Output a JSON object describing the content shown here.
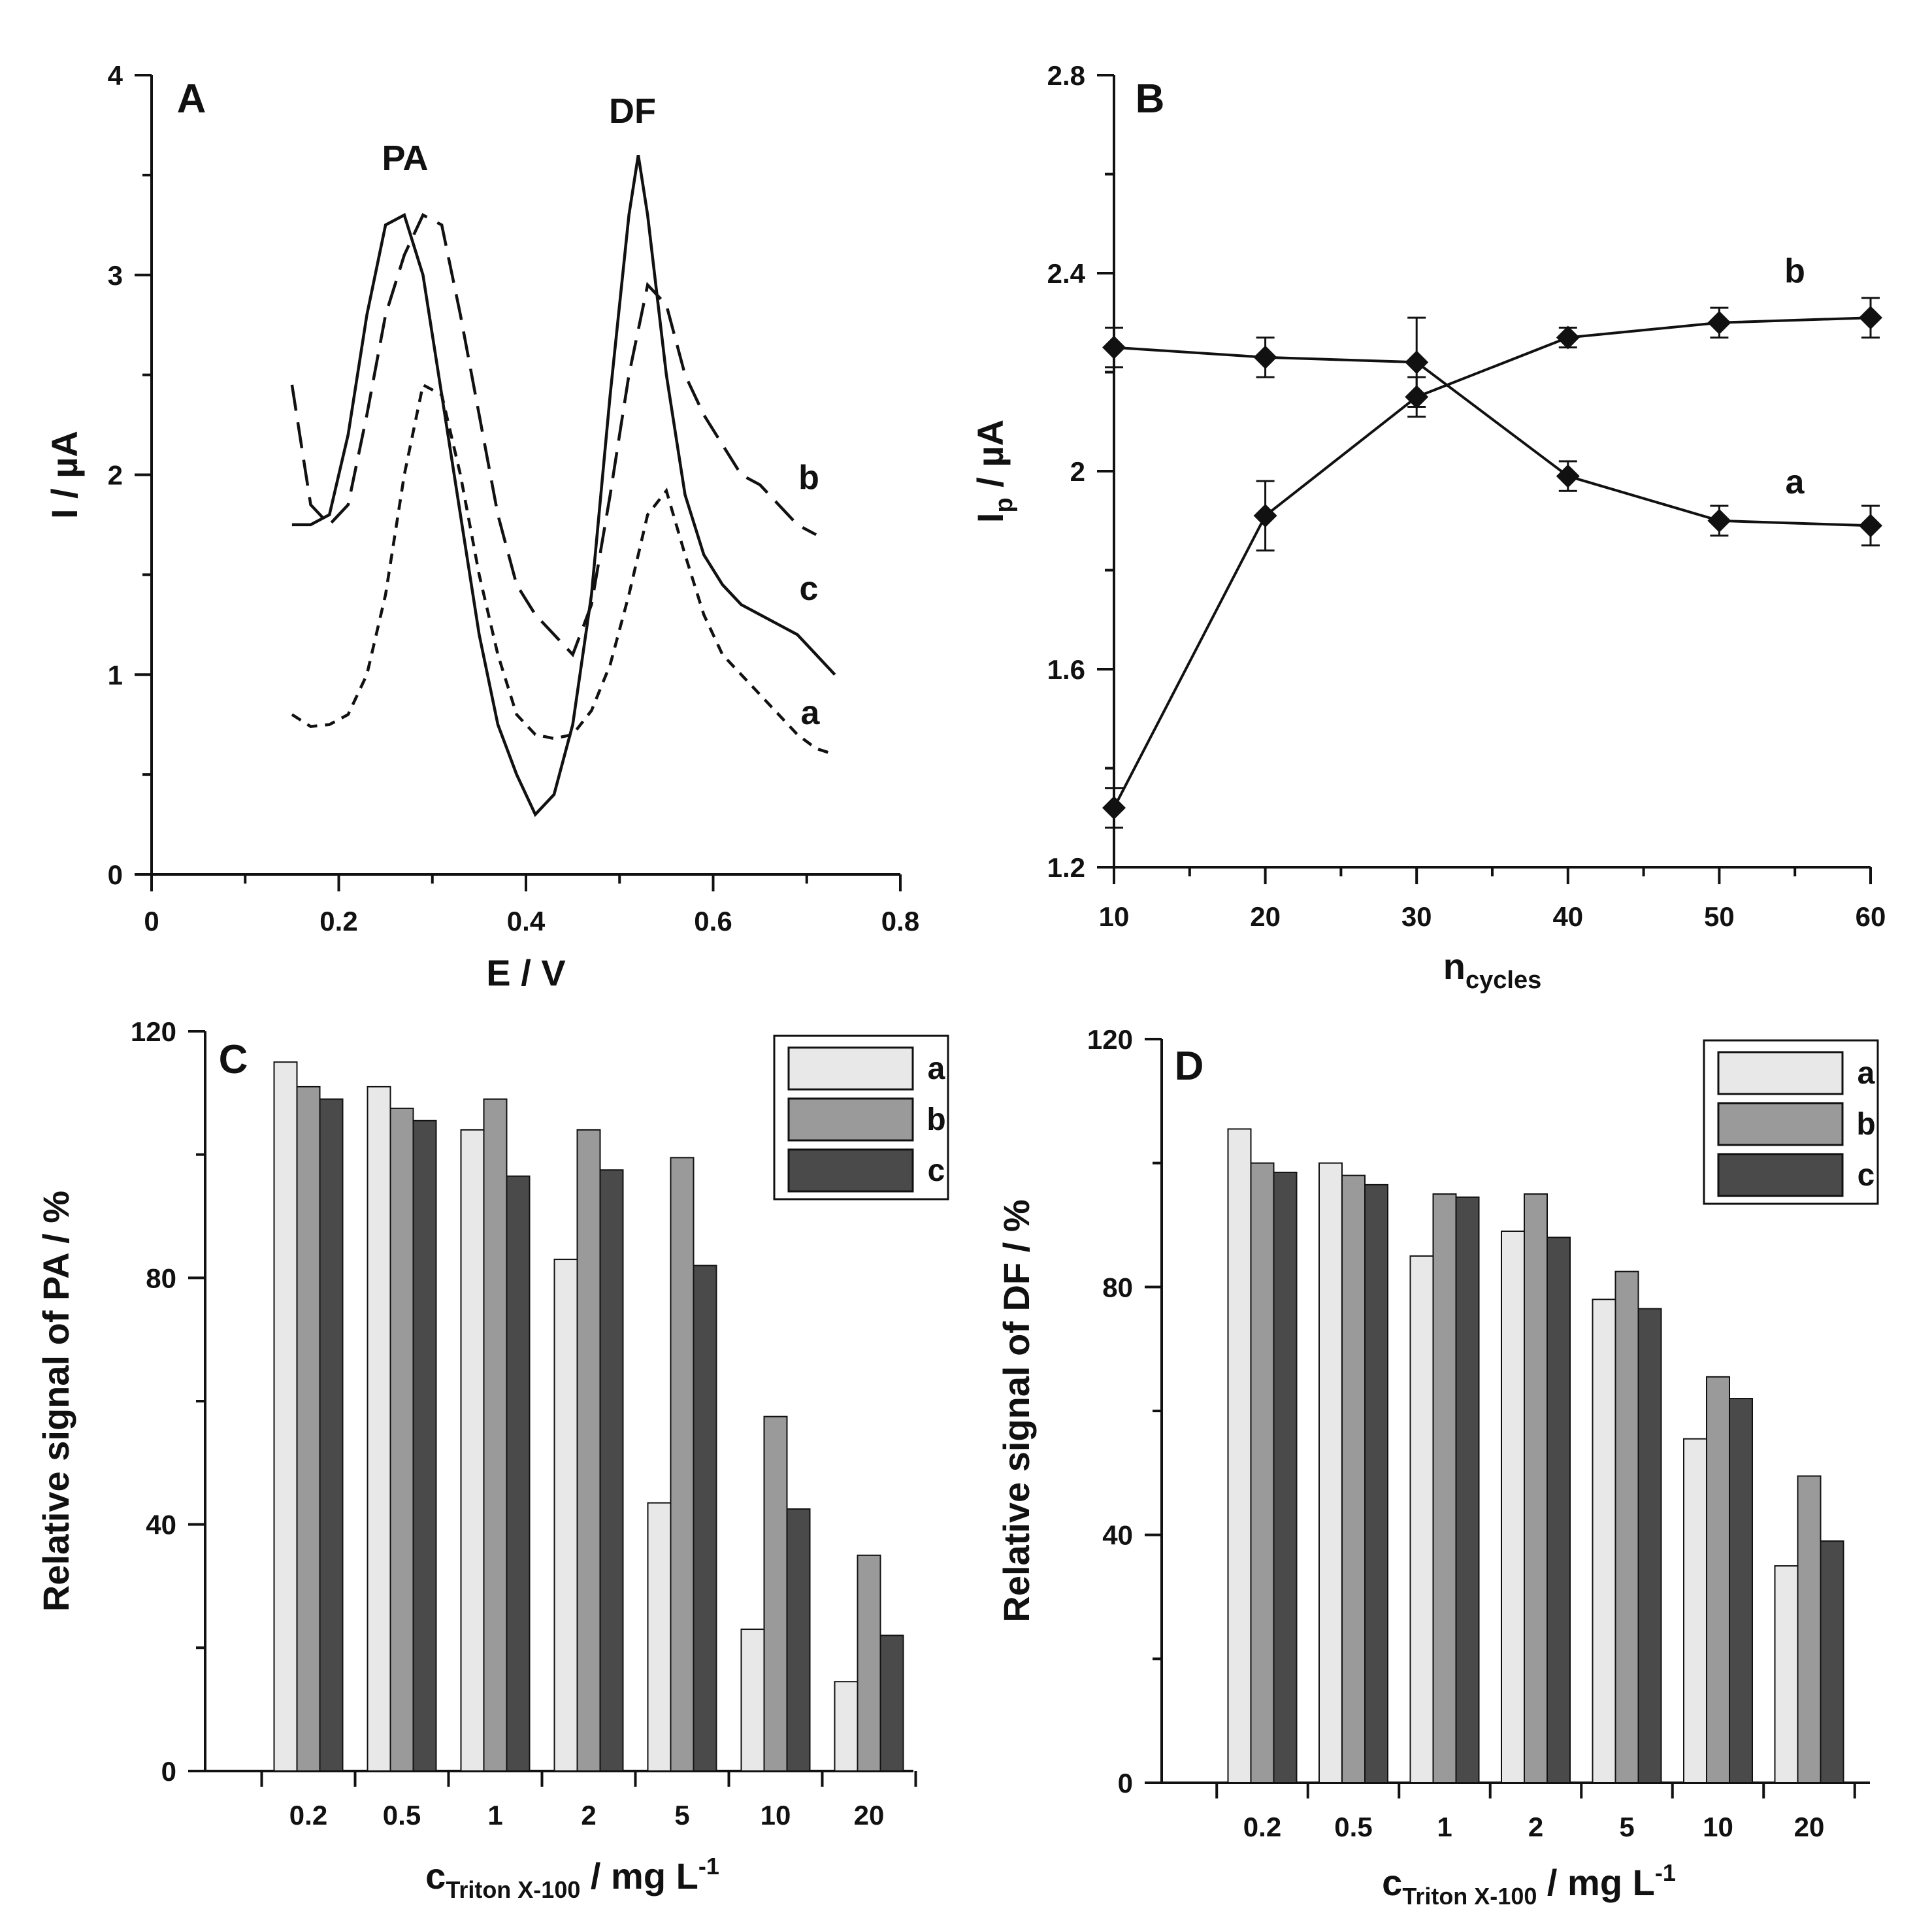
{
  "chart_data": [
    {
      "panel": "A",
      "type": "line",
      "xlabel": "E / V",
      "ylabel": "I / µA",
      "xlim": [
        0,
        0.8
      ],
      "ylim": [
        0,
        4
      ],
      "xticks": [
        "0",
        "0.2",
        "0.4",
        "0.6",
        "0.8"
      ],
      "yticks": [
        "0",
        "1",
        "2",
        "3",
        "4"
      ],
      "annotations": [
        "PA",
        "DF"
      ],
      "series": [
        {
          "name": "a",
          "style": "short-dash",
          "x": [
            0.15,
            0.17,
            0.19,
            0.21,
            0.23,
            0.25,
            0.27,
            0.29,
            0.31,
            0.33,
            0.35,
            0.37,
            0.39,
            0.41,
            0.43,
            0.45,
            0.47,
            0.49,
            0.51,
            0.53,
            0.55,
            0.57,
            0.59,
            0.61,
            0.63,
            0.65,
            0.67,
            0.69,
            0.71,
            0.73
          ],
          "y": [
            0.8,
            0.74,
            0.75,
            0.8,
            1.0,
            1.4,
            2.0,
            2.45,
            2.4,
            2.0,
            1.5,
            1.1,
            0.8,
            0.7,
            0.68,
            0.7,
            0.82,
            1.05,
            1.4,
            1.8,
            1.92,
            1.6,
            1.3,
            1.1,
            1.0,
            0.9,
            0.8,
            0.7,
            0.63,
            0.6
          ]
        },
        {
          "name": "b",
          "style": "long-dash",
          "x": [
            0.15,
            0.17,
            0.19,
            0.21,
            0.23,
            0.25,
            0.27,
            0.29,
            0.31,
            0.33,
            0.35,
            0.37,
            0.39,
            0.41,
            0.43,
            0.45,
            0.47,
            0.49,
            0.51,
            0.53,
            0.55,
            0.57,
            0.59,
            0.61,
            0.63,
            0.65,
            0.67,
            0.69,
            0.71
          ],
          "y": [
            2.45,
            1.85,
            1.75,
            1.85,
            2.3,
            2.8,
            3.1,
            3.3,
            3.25,
            2.8,
            2.3,
            1.8,
            1.45,
            1.3,
            1.2,
            1.1,
            1.35,
            1.9,
            2.5,
            2.95,
            2.85,
            2.5,
            2.3,
            2.15,
            2.0,
            1.95,
            1.85,
            1.75,
            1.7
          ]
        },
        {
          "name": "c",
          "style": "solid",
          "x": [
            0.15,
            0.17,
            0.19,
            0.21,
            0.23,
            0.25,
            0.27,
            0.29,
            0.31,
            0.33,
            0.35,
            0.37,
            0.39,
            0.41,
            0.43,
            0.45,
            0.47,
            0.49,
            0.51,
            0.52,
            0.53,
            0.55,
            0.57,
            0.59,
            0.61,
            0.63,
            0.65,
            0.67,
            0.69,
            0.71,
            0.73
          ],
          "y": [
            1.75,
            1.75,
            1.8,
            2.2,
            2.8,
            3.25,
            3.3,
            3.0,
            2.4,
            1.8,
            1.2,
            0.75,
            0.5,
            0.3,
            0.4,
            0.75,
            1.4,
            2.4,
            3.3,
            3.6,
            3.3,
            2.5,
            1.9,
            1.6,
            1.45,
            1.35,
            1.3,
            1.25,
            1.2,
            1.1,
            1.0
          ]
        }
      ]
    },
    {
      "panel": "B",
      "type": "line",
      "xlabel_main": "n",
      "xlabel_sub": "cycles",
      "ylabel_main": "I",
      "ylabel_sub": "p",
      "ylabel_rest": " / µA",
      "xlim": [
        10,
        60
      ],
      "ylim": [
        1.2,
        2.8
      ],
      "xticks": [
        "10",
        "20",
        "30",
        "40",
        "50",
        "60"
      ],
      "yticks": [
        "1.2",
        "1.6",
        "2",
        "2.4",
        "2.8"
      ],
      "series": [
        {
          "name": "a",
          "x": [
            10,
            20,
            30,
            40,
            50,
            60
          ],
          "y": [
            2.25,
            2.23,
            2.22,
            1.99,
            1.9,
            1.89
          ],
          "err": [
            0.04,
            0.04,
            0.09,
            0.03,
            0.03,
            0.04
          ]
        },
        {
          "name": "b",
          "x": [
            10,
            20,
            30,
            40,
            50,
            60
          ],
          "y": [
            1.32,
            1.91,
            2.15,
            2.27,
            2.3,
            2.31
          ],
          "err": [
            0.04,
            0.07,
            0.04,
            0.02,
            0.03,
            0.04
          ]
        }
      ]
    },
    {
      "panel": "C",
      "type": "bar",
      "xlabel_main": "c",
      "xlabel_sub": "Triton X-100",
      "xlabel_rest": " / mg L",
      "xlabel_sup": "-1",
      "ylabel": "Relative signal of PA / %",
      "ylim": [
        0,
        120
      ],
      "yticks": [
        "0",
        "40",
        "80",
        "120"
      ],
      "categories": [
        "0.2",
        "0.5",
        "1",
        "2",
        "5",
        "10",
        "20"
      ],
      "legend": [
        "a",
        "b",
        "c"
      ],
      "series": [
        {
          "name": "a",
          "color": "#e8e8e8",
          "values": [
            115,
            111,
            104,
            83,
            43.5,
            23,
            14.5
          ]
        },
        {
          "name": "b",
          "color": "#9a9a9a",
          "values": [
            111,
            107.5,
            109,
            104,
            99.5,
            57.5,
            35
          ]
        },
        {
          "name": "c",
          "color": "#4a4a4a",
          "values": [
            109,
            105.5,
            96.5,
            97.5,
            82,
            42.5,
            22
          ]
        }
      ]
    },
    {
      "panel": "D",
      "type": "bar",
      "xlabel_main": "c",
      "xlabel_sub": "Triton X-100",
      "xlabel_rest": " / mg L",
      "xlabel_sup": "-1",
      "ylabel": "Relative signal of DF / %",
      "ylim": [
        0,
        120
      ],
      "yticks": [
        "0",
        "40",
        "80",
        "120"
      ],
      "categories": [
        "0.2",
        "0.5",
        "1",
        "2",
        "5",
        "10",
        "20"
      ],
      "legend": [
        "a",
        "b",
        "c"
      ],
      "series": [
        {
          "name": "a",
          "color": "#e8e8e8",
          "values": [
            105.5,
            100,
            85,
            89,
            78,
            55.5,
            35
          ]
        },
        {
          "name": "b",
          "color": "#9a9a9a",
          "values": [
            100,
            98,
            95,
            95,
            82.5,
            65.5,
            49.5
          ]
        },
        {
          "name": "c",
          "color": "#4a4a4a",
          "values": [
            98.5,
            96.5,
            94.5,
            88,
            76.5,
            62,
            39
          ]
        }
      ]
    }
  ]
}
